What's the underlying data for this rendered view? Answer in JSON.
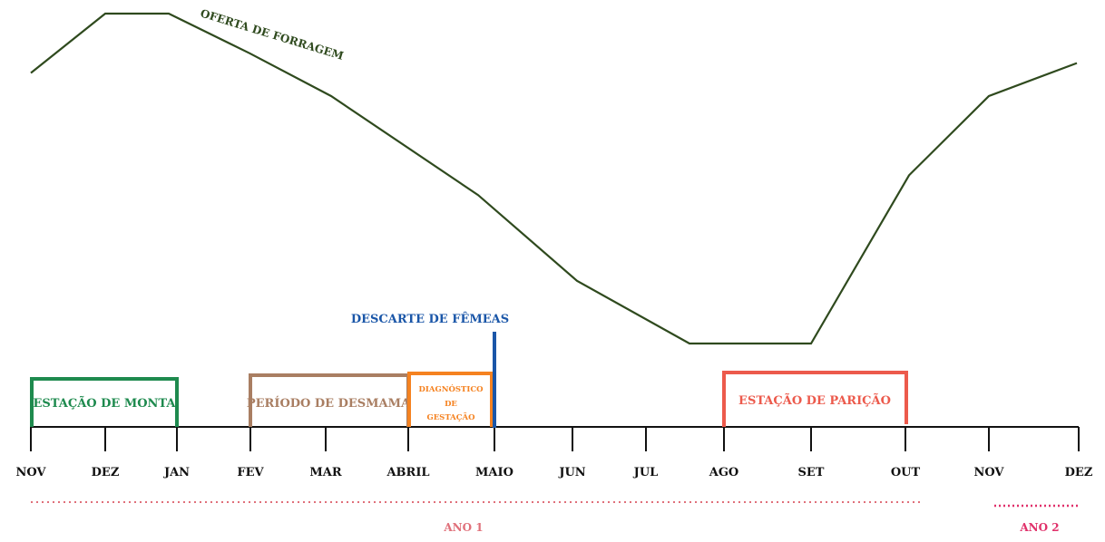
{
  "curve": {
    "label": "OFERTA DE FORRAGEM",
    "color": "#2f4a1e",
    "relative_level_by_month": [
      0.82,
      1.0,
      1.0,
      0.88,
      0.75,
      0.45,
      0.19,
      0.0,
      0.0,
      0.0,
      0.51,
      0.75,
      0.85
    ]
  },
  "timeline": {
    "months": [
      "NOV",
      "DEZ",
      "JAN",
      "FEV",
      "MAR",
      "ABRIL",
      "MAIO",
      "JUN",
      "JUL",
      "AGO",
      "SET",
      "OUT",
      "NOV",
      "DEZ"
    ]
  },
  "periods": {
    "monta": {
      "label": "ESTAÇÃO DE MONTA",
      "color": "#1e8a4e"
    },
    "desmama": {
      "label": "PERÍODO DE DESMAMA",
      "color": "#a97e62"
    },
    "diagnostico": {
      "line1": "DIAGNÓSTICO",
      "line2": "DE",
      "line3": "GESTAÇÃO",
      "color": "#f58220"
    },
    "descarte": {
      "label": "DESCARTE DE FÊMEAS",
      "color": "#1a56a8"
    },
    "paricao": {
      "label": "ESTAÇÃO DE PARIÇÃO",
      "color": "#ec5a4c"
    }
  },
  "years": {
    "ano1": {
      "label": "ANO 1",
      "color": "#e0707a"
    },
    "ano2": {
      "label": "ANO 2",
      "color": "#e0306a"
    }
  }
}
